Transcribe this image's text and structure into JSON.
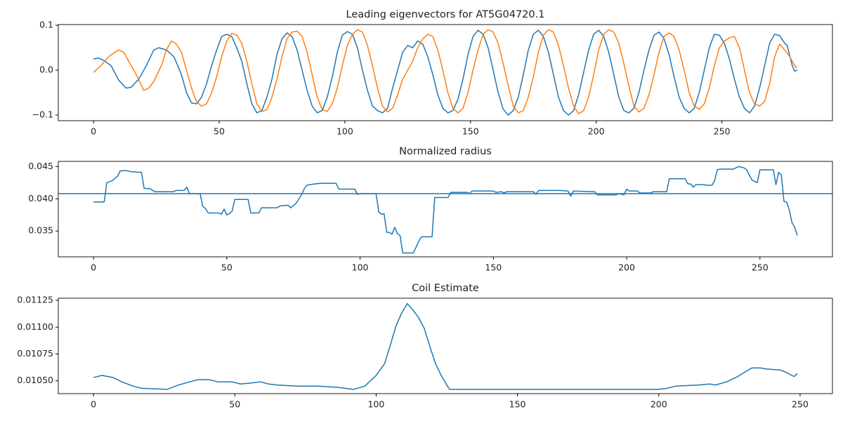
{
  "chart_data": [
    {
      "type": "line",
      "title": "Leading eigenvectors for AT5G04720.1",
      "xlim": [
        -14,
        294
      ],
      "ylim": [
        -0.1125,
        0.1016
      ],
      "xticks": [
        0,
        50,
        100,
        150,
        200,
        250
      ],
      "yticks": [
        {
          "value": 0.1,
          "label": "0.1"
        },
        {
          "value": 0,
          "label": "0.0"
        },
        {
          "value": -0.1,
          "label": "−0.1"
        }
      ],
      "series": [
        {
          "color": "#1f77b4",
          "x": [
            0,
            2,
            4,
            7,
            10,
            13,
            15,
            18,
            21,
            24,
            26,
            29,
            32,
            35,
            37,
            39,
            41,
            43,
            45,
            47,
            49,
            51,
            53,
            55,
            57,
            59,
            61,
            63,
            65,
            67,
            69,
            71,
            73,
            75,
            77,
            79,
            81,
            83,
            85,
            87,
            89,
            91,
            93,
            95,
            97,
            99,
            101,
            103,
            105,
            107,
            109,
            111,
            113,
            115,
            117,
            119,
            121,
            123,
            125,
            127,
            129,
            131,
            133,
            135,
            137,
            139,
            141,
            143,
            145,
            147,
            149,
            151,
            153,
            155,
            157,
            159,
            161,
            163,
            165,
            167,
            169,
            171,
            173,
            175,
            177,
            179,
            181,
            183,
            185,
            187,
            189,
            191,
            193,
            195,
            197,
            199,
            201,
            203,
            205,
            207,
            209,
            211,
            213,
            215,
            217,
            219,
            221,
            223,
            225,
            227,
            229,
            231,
            233,
            235,
            237,
            239,
            241,
            243,
            245,
            247,
            249,
            251,
            253,
            255,
            257,
            259,
            261,
            263,
            265,
            267,
            269,
            271,
            273,
            275,
            276,
            278,
            279,
            280
          ],
          "values": [
            0.025,
            0.027,
            0.022,
            0.01,
            -0.022,
            -0.04,
            -0.038,
            -0.02,
            0.01,
            0.045,
            0.05,
            0.045,
            0.03,
            -0.01,
            -0.05,
            -0.073,
            -0.075,
            -0.06,
            -0.03,
            0.01,
            0.045,
            0.075,
            0.08,
            0.075,
            0.05,
            0.02,
            -0.03,
            -0.075,
            -0.095,
            -0.09,
            -0.06,
            -0.02,
            0.035,
            0.07,
            0.083,
            0.075,
            0.045,
            0,
            -0.045,
            -0.08,
            -0.095,
            -0.09,
            -0.06,
            -0.015,
            0.04,
            0.078,
            0.086,
            0.08,
            0.05,
            0,
            -0.045,
            -0.08,
            -0.09,
            -0.095,
            -0.085,
            -0.04,
            0,
            0.04,
            0.055,
            0.05,
            0.065,
            0.058,
            0.03,
            -0.01,
            -0.055,
            -0.085,
            -0.095,
            -0.09,
            -0.065,
            -0.02,
            0.035,
            0.075,
            0.089,
            0.08,
            0.05,
            0,
            -0.05,
            -0.087,
            -0.1,
            -0.09,
            -0.06,
            -0.01,
            0.045,
            0.08,
            0.089,
            0.075,
            0.04,
            -0.01,
            -0.06,
            -0.09,
            -0.1,
            -0.09,
            -0.055,
            -0.005,
            0.045,
            0.08,
            0.089,
            0.075,
            0.04,
            -0.01,
            -0.06,
            -0.09,
            -0.095,
            -0.085,
            -0.05,
            0,
            0.045,
            0.078,
            0.085,
            0.07,
            0.035,
            -0.015,
            -0.06,
            -0.085,
            -0.095,
            -0.085,
            -0.05,
            0,
            0.05,
            0.08,
            0.078,
            0.06,
            0.025,
            -0.02,
            -0.06,
            -0.085,
            -0.095,
            -0.08,
            -0.04,
            0.01,
            0.06,
            0.08,
            0.077,
            0.06,
            0.055,
            0.01,
            -0.002,
            0
          ]
        },
        {
          "color": "#ff7f0e",
          "x": [
            0,
            3,
            6,
            8,
            10,
            12,
            14,
            17,
            20,
            22,
            24,
            27,
            29,
            31,
            33,
            35,
            37,
            39,
            41,
            43,
            45,
            47,
            49,
            51,
            53,
            55,
            57,
            59,
            61,
            63,
            65,
            67,
            69,
            71,
            73,
            75,
            77,
            79,
            81,
            83,
            85,
            87,
            89,
            91,
            93,
            95,
            97,
            99,
            101,
            103,
            105,
            107,
            109,
            111,
            113,
            115,
            117,
            119,
            121,
            123,
            125,
            127,
            129,
            131,
            133,
            135,
            137,
            139,
            141,
            143,
            145,
            147,
            149,
            151,
            153,
            155,
            157,
            159,
            161,
            163,
            165,
            167,
            169,
            171,
            173,
            175,
            177,
            179,
            181,
            183,
            185,
            187,
            189,
            191,
            193,
            195,
            197,
            199,
            201,
            203,
            205,
            207,
            209,
            211,
            213,
            215,
            217,
            219,
            221,
            223,
            225,
            227,
            229,
            231,
            233,
            235,
            237,
            239,
            241,
            243,
            245,
            247,
            249,
            251,
            253,
            255,
            257,
            259,
            261,
            263,
            265,
            267,
            269,
            271,
            273,
            275,
            277,
            279,
            280
          ],
          "values": [
            -0.005,
            0.01,
            0.03,
            0.038,
            0.045,
            0.04,
            0.02,
            -0.01,
            -0.045,
            -0.04,
            -0.025,
            0.01,
            0.045,
            0.065,
            0.058,
            0.04,
            0,
            -0.04,
            -0.07,
            -0.08,
            -0.075,
            -0.05,
            -0.015,
            0.03,
            0.065,
            0.082,
            0.078,
            0.06,
            0.02,
            -0.03,
            -0.075,
            -0.092,
            -0.088,
            -0.06,
            -0.02,
            0.03,
            0.07,
            0.085,
            0.087,
            0.075,
            0.04,
            -0.01,
            -0.06,
            -0.088,
            -0.092,
            -0.075,
            -0.04,
            0.01,
            0.055,
            0.08,
            0.09,
            0.085,
            0.055,
            0.01,
            -0.04,
            -0.08,
            -0.093,
            -0.085,
            -0.055,
            -0.02,
            0,
            0.02,
            0.05,
            0.07,
            0.08,
            0.075,
            0.045,
            0,
            -0.05,
            -0.085,
            -0.095,
            -0.085,
            -0.05,
            0,
            0.045,
            0.08,
            0.09,
            0.085,
            0.06,
            0.015,
            -0.035,
            -0.08,
            -0.095,
            -0.09,
            -0.06,
            -0.015,
            0.04,
            0.078,
            0.09,
            0.085,
            0.055,
            0.01,
            -0.04,
            -0.08,
            -0.097,
            -0.09,
            -0.06,
            -0.01,
            0.045,
            0.08,
            0.09,
            0.085,
            0.06,
            0.015,
            -0.035,
            -0.08,
            -0.093,
            -0.085,
            -0.055,
            -0.01,
            0.04,
            0.075,
            0.083,
            0.075,
            0.045,
            0,
            -0.05,
            -0.08,
            -0.087,
            -0.075,
            -0.04,
            0.01,
            0.05,
            0.065,
            0.072,
            0.075,
            0.05,
            0,
            -0.05,
            -0.075,
            -0.08,
            -0.07,
            -0.03,
            0.03,
            0.058,
            0.045,
            0.03,
            0.01,
            0.005
          ]
        }
      ]
    },
    {
      "type": "line",
      "title": "Normalized radius",
      "xlim": [
        -13.2,
        277.2
      ],
      "ylim": [
        0.031,
        0.0458
      ],
      "xticks": [
        0,
        50,
        100,
        150,
        200,
        250
      ],
      "yticks": [
        0.045,
        {
          "value": 0.04,
          "label": "0.040"
        },
        0.035
      ],
      "hline": 0.0408,
      "hline_color": "#1f77b4",
      "series": [
        {
          "color": "#1f77b4",
          "x": [
            0,
            4,
            5,
            7,
            9,
            10,
            12,
            14,
            18,
            19,
            21,
            23,
            30,
            31,
            34,
            35,
            36,
            40,
            41,
            42,
            43,
            47,
            48,
            49,
            50,
            51,
            52,
            53,
            58,
            59,
            62,
            63,
            69,
            70,
            73,
            74,
            76,
            78,
            79,
            80,
            83,
            85,
            91,
            92,
            98,
            99,
            100,
            106,
            107,
            108,
            109,
            110,
            111,
            112,
            113,
            114,
            115,
            116,
            120,
            122,
            123,
            127,
            128,
            133,
            134,
            140,
            141,
            142,
            150,
            151,
            153,
            154,
            155,
            165,
            166,
            167,
            175,
            178,
            179,
            180,
            188,
            189,
            196,
            197,
            199,
            200,
            201,
            204,
            205,
            209,
            210,
            215,
            216,
            222,
            223,
            224,
            225,
            226,
            229,
            230,
            232,
            233,
            234,
            235,
            240,
            241,
            242,
            244,
            245,
            247,
            249,
            250,
            255,
            256,
            257,
            258,
            259,
            260,
            261,
            262,
            263,
            264
          ],
          "values": [
            0.0395,
            0.0395,
            0.0425,
            0.0428,
            0.0435,
            0.0443,
            0.0444,
            0.0442,
            0.0441,
            0.0416,
            0.0416,
            0.0411,
            0.0411,
            0.0413,
            0.0413,
            0.0418,
            0.0408,
            0.0408,
            0.0388,
            0.0385,
            0.0378,
            0.0378,
            0.0376,
            0.0384,
            0.0375,
            0.0377,
            0.0381,
            0.0399,
            0.0399,
            0.0378,
            0.0378,
            0.0386,
            0.0386,
            0.0389,
            0.039,
            0.0386,
            0.0393,
            0.0406,
            0.0415,
            0.0421,
            0.0423,
            0.0424,
            0.0424,
            0.0415,
            0.0415,
            0.0407,
            0.0408,
            0.0408,
            0.038,
            0.0376,
            0.0377,
            0.0348,
            0.0348,
            0.0345,
            0.0356,
            0.0346,
            0.0343,
            0.0316,
            0.0316,
            0.0334,
            0.0341,
            0.0341,
            0.0402,
            0.0402,
            0.041,
            0.041,
            0.0408,
            0.0412,
            0.0412,
            0.041,
            0.0411,
            0.0409,
            0.0411,
            0.0411,
            0.0407,
            0.0413,
            0.0413,
            0.0412,
            0.0404,
            0.0412,
            0.0411,
            0.0406,
            0.0406,
            0.0408,
            0.0406,
            0.0415,
            0.0412,
            0.0412,
            0.0409,
            0.0409,
            0.0411,
            0.0411,
            0.0431,
            0.0431,
            0.0423,
            0.0423,
            0.0418,
            0.0422,
            0.0422,
            0.0421,
            0.0421,
            0.0428,
            0.0445,
            0.0446,
            0.0446,
            0.0448,
            0.045,
            0.0448,
            0.0445,
            0.0429,
            0.0425,
            0.0445,
            0.0445,
            0.0422,
            0.0441,
            0.0437,
            0.0396,
            0.0395,
            0.0383,
            0.0363,
            0.0356,
            0.0343
          ]
        }
      ]
    },
    {
      "type": "line",
      "title": "Coil Estimate",
      "xlim": [
        -12.45,
        261.45
      ],
      "ylim": [
        0.01038,
        0.01127
      ],
      "xticks": [
        0,
        50,
        100,
        150,
        200,
        250
      ],
      "yticks": [
        {
          "value": 0.0105,
          "label": "0.01050"
        },
        {
          "value": 0.01075,
          "label": "0.01075"
        },
        {
          "value": 0.011,
          "label": "0.01100"
        },
        {
          "value": 0.01125,
          "label": "0.01125"
        }
      ],
      "series": [
        {
          "color": "#1f77b4",
          "x": [
            0,
            3,
            7,
            10,
            14,
            17,
            26,
            30,
            34,
            37,
            41,
            44,
            49,
            52,
            56,
            59,
            62,
            65,
            72,
            79,
            86,
            92,
            96,
            98,
            100,
            103,
            105,
            107,
            109,
            111,
            113,
            115,
            117,
            119,
            121,
            123,
            125,
            126,
            140,
            170,
            200,
            203,
            206,
            214,
            218,
            220,
            224,
            228,
            231,
            233,
            236,
            238,
            243,
            245,
            247,
            248,
            249
          ],
          "values": [
            0.01053,
            0.01055,
            0.01053,
            0.01049,
            0.01045,
            0.01043,
            0.01042,
            0.01046,
            0.01049,
            0.01051,
            0.01051,
            0.01049,
            0.01049,
            0.01047,
            0.01048,
            0.01049,
            0.01047,
            0.01046,
            0.01045,
            0.01045,
            0.01044,
            0.01042,
            0.01045,
            0.0105,
            0.01055,
            0.01066,
            0.01083,
            0.01101,
            0.01113,
            0.01122,
            0.01116,
            0.01109,
            0.01099,
            0.01082,
            0.01066,
            0.01055,
            0.01046,
            0.01042,
            0.01042,
            0.01042,
            0.01042,
            0.01043,
            0.01045,
            0.01046,
            0.01047,
            0.01046,
            0.01049,
            0.01054,
            0.01059,
            0.01062,
            0.01062,
            0.01061,
            0.0106,
            0.01058,
            0.01055,
            0.01054,
            0.01057
          ]
        }
      ]
    }
  ]
}
